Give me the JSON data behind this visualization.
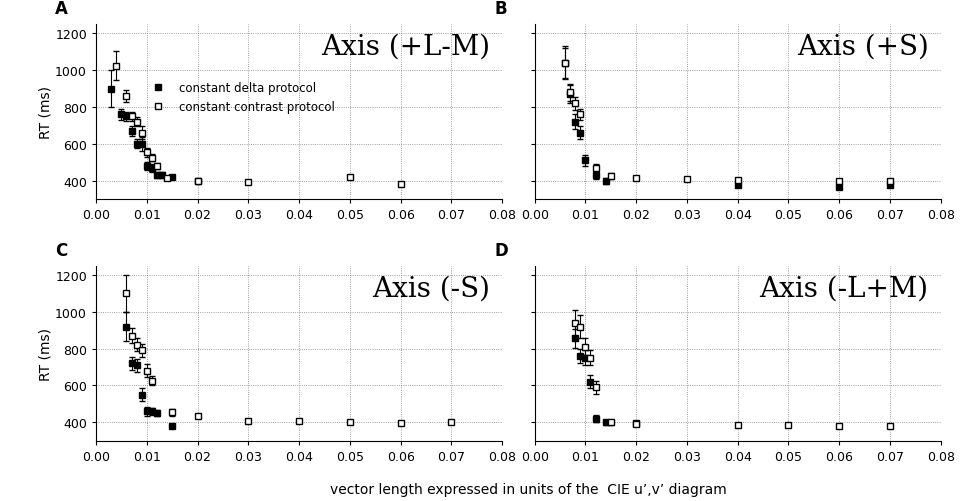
{
  "panels": [
    {
      "label": "A",
      "title": "Axis (+L-M)",
      "filled_x": [
        0.003,
        0.005,
        0.006,
        0.007,
        0.008,
        0.009,
        0.01,
        0.011,
        0.012,
        0.013,
        0.015,
        0.02
      ],
      "filled_y": [
        900,
        760,
        750,
        670,
        600,
        600,
        480,
        470,
        430,
        430,
        420,
        400
      ],
      "filled_yerr": [
        100,
        30,
        25,
        25,
        25,
        40,
        20,
        20,
        15,
        15,
        12,
        8
      ],
      "open_x": [
        0.004,
        0.006,
        0.007,
        0.008,
        0.009,
        0.01,
        0.011,
        0.012,
        0.014,
        0.02,
        0.03,
        0.05,
        0.06
      ],
      "open_y": [
        1025,
        860,
        750,
        720,
        660,
        555,
        525,
        480,
        415,
        400,
        395,
        420,
        380
      ],
      "open_yerr": [
        80,
        35,
        25,
        25,
        35,
        25,
        20,
        15,
        12,
        10,
        8,
        8,
        8
      ]
    },
    {
      "label": "B",
      "title": "Axis (+S)",
      "filled_x": [
        0.006,
        0.007,
        0.008,
        0.009,
        0.01,
        0.012,
        0.014,
        0.04,
        0.06,
        0.07
      ],
      "filled_y": [
        1040,
        870,
        720,
        660,
        510,
        430,
        400,
        375,
        365,
        375
      ],
      "filled_yerr": [
        80,
        50,
        40,
        35,
        30,
        20,
        15,
        8,
        8,
        8
      ],
      "open_x": [
        0.006,
        0.007,
        0.008,
        0.009,
        0.012,
        0.015,
        0.02,
        0.03,
        0.04,
        0.06,
        0.07
      ],
      "open_y": [
        1040,
        880,
        820,
        760,
        470,
        425,
        415,
        410,
        405,
        400,
        400
      ],
      "open_yerr": [
        90,
        45,
        35,
        30,
        20,
        15,
        10,
        8,
        8,
        8,
        8
      ]
    },
    {
      "label": "C",
      "title": "Axis (-S)",
      "filled_x": [
        0.006,
        0.007,
        0.008,
        0.009,
        0.01,
        0.011,
        0.012,
        0.015
      ],
      "filled_y": [
        920,
        720,
        710,
        550,
        460,
        460,
        450,
        380
      ],
      "filled_yerr": [
        80,
        35,
        35,
        35,
        25,
        20,
        18,
        10
      ],
      "open_x": [
        0.006,
        0.007,
        0.008,
        0.009,
        0.01,
        0.011,
        0.015,
        0.02,
        0.03,
        0.04,
        0.05,
        0.06,
        0.07
      ],
      "open_y": [
        1100,
        870,
        820,
        790,
        680,
        625,
        455,
        435,
        405,
        405,
        400,
        395,
        400
      ],
      "open_yerr": [
        100,
        40,
        35,
        35,
        35,
        25,
        18,
        12,
        8,
        8,
        8,
        8,
        8
      ]
    },
    {
      "label": "D",
      "title": "Axis (-L+M)",
      "filled_x": [
        0.008,
        0.009,
        0.01,
        0.011,
        0.012,
        0.014,
        0.02
      ],
      "filled_y": [
        855,
        760,
        750,
        620,
        420,
        400,
        395
      ],
      "filled_yerr": [
        50,
        40,
        40,
        35,
        20,
        12,
        8
      ],
      "open_x": [
        0.008,
        0.009,
        0.01,
        0.011,
        0.012,
        0.015,
        0.02,
        0.04,
        0.05,
        0.06,
        0.07
      ],
      "open_y": [
        940,
        920,
        810,
        750,
        590,
        400,
        390,
        385,
        385,
        380,
        378
      ],
      "open_yerr": [
        70,
        60,
        45,
        40,
        35,
        15,
        10,
        8,
        8,
        8,
        8
      ]
    }
  ],
  "xlabel": "vector length expressed in units of the  CIE u’,v’ diagram",
  "ylabel": "RT (ms)",
  "ylim": [
    300,
    1250
  ],
  "xlim": [
    0.0,
    0.08
  ],
  "yticks": [
    400,
    600,
    800,
    1000,
    1200
  ],
  "xticks": [
    0.0,
    0.01,
    0.02,
    0.03,
    0.04,
    0.05,
    0.06,
    0.07,
    0.08
  ],
  "legend_labels": [
    "constant delta protocol",
    "constant contrast protocol"
  ],
  "plot_bg": "#ffffff",
  "marker_size": 5,
  "title_fontsize": 20,
  "label_fontsize": 10,
  "tick_fontsize": 9,
  "panel_label_fontsize": 12
}
